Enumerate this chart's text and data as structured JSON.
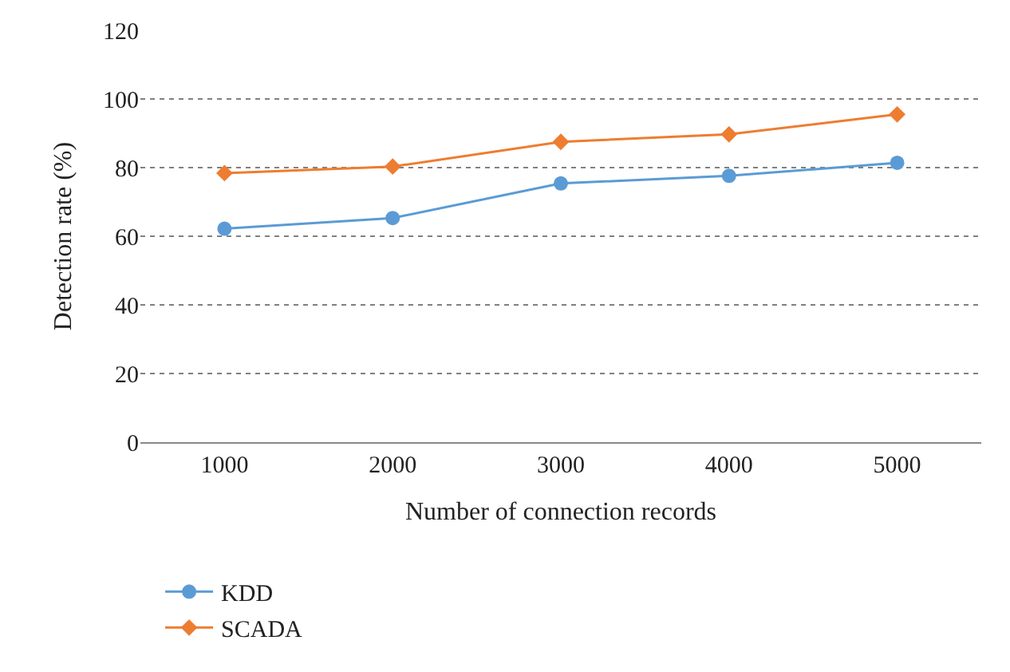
{
  "chart_data": {
    "type": "line",
    "xlabel": "Number of connection records",
    "ylabel": "Detection rate (%)",
    "categories": [
      "1000",
      "2000",
      "3000",
      "4000",
      "5000"
    ],
    "series": [
      {
        "name": "KDD",
        "color": "#5b9bd5",
        "marker": "circle",
        "values": [
          62.2,
          65.3,
          75.4,
          77.6,
          81.4
        ]
      },
      {
        "name": "SCADA",
        "color": "#ed7d31",
        "marker": "diamond",
        "values": [
          78.4,
          80.3,
          87.5,
          89.7,
          95.5
        ]
      }
    ],
    "ylim": [
      0,
      120
    ],
    "yticks": [
      0,
      20,
      40,
      60,
      80,
      100,
      120
    ],
    "grid": "y",
    "legend": "bottom left",
    "line_style": "solid"
  }
}
